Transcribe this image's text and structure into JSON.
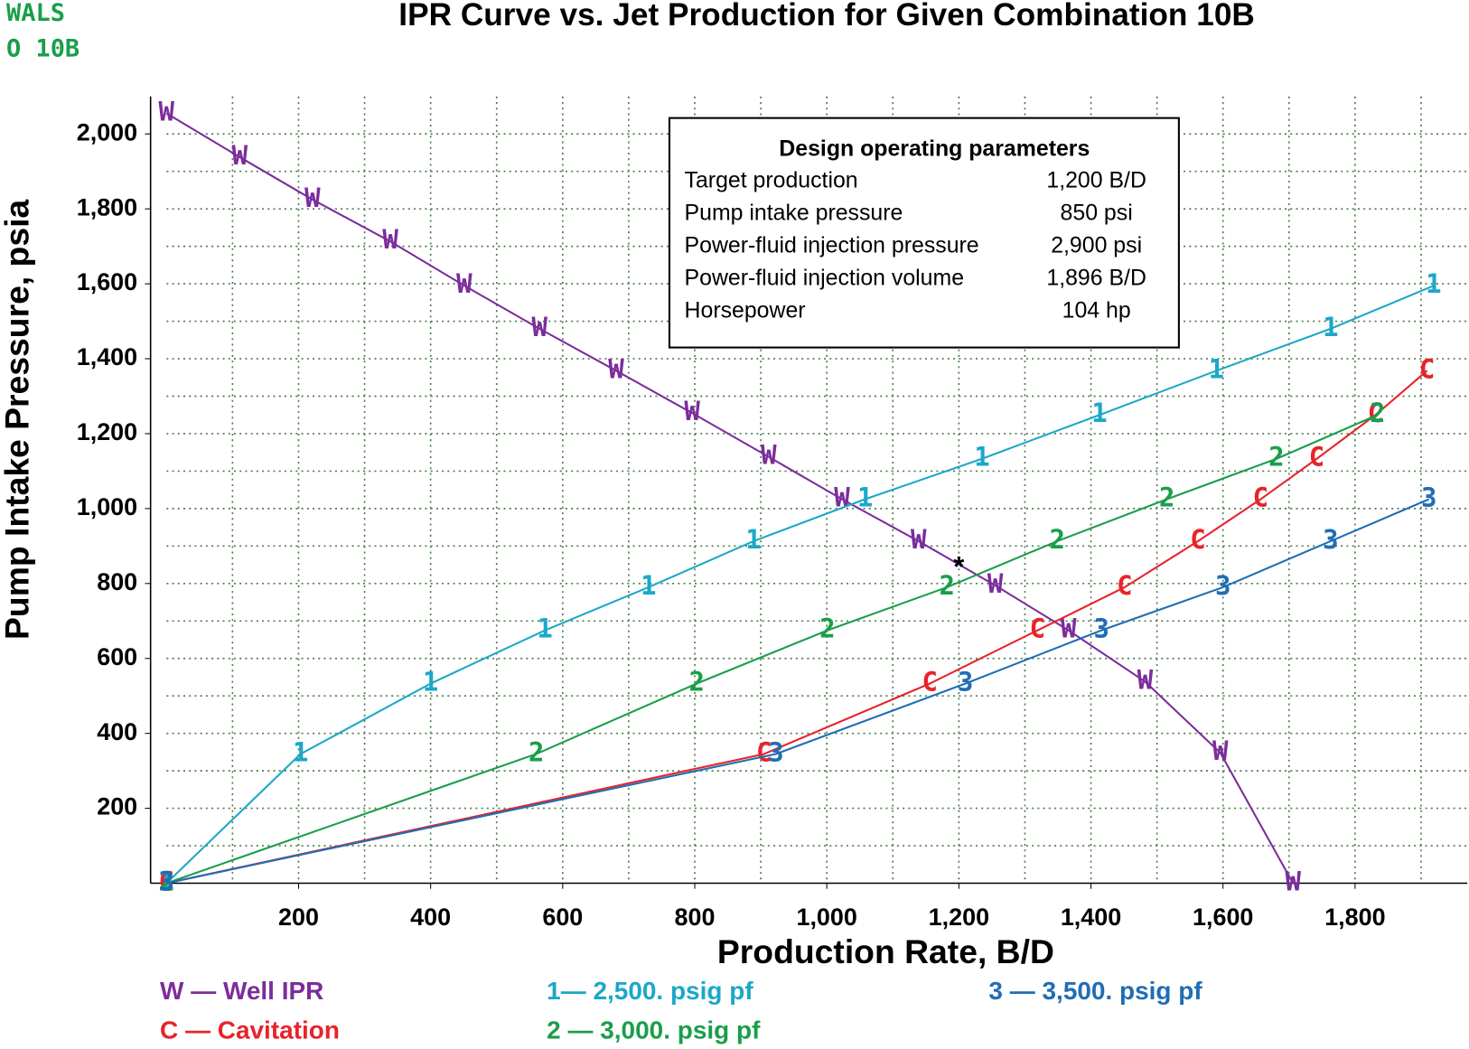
{
  "chart_data": {
    "type": "line",
    "title": "IPR Curve vs. Jet Production for Given Combination 10B",
    "corner_label": [
      "WALS",
      "O 10B"
    ],
    "x_label": "Production Rate, B/D",
    "y_label": "Pump Intake Pressure, psia",
    "xlim": [
      0,
      1970
    ],
    "ylim": [
      0,
      2100
    ],
    "xticks": [
      200,
      400,
      600,
      800,
      {
        "value": 1000,
        "label": "1,000"
      },
      {
        "value": 1200,
        "label": "1,200"
      },
      {
        "value": 1400,
        "label": "1,400"
      },
      {
        "value": 1600,
        "label": "1,600"
      },
      {
        "value": 1800,
        "label": "1,800"
      }
    ],
    "yticks": [
      200,
      400,
      600,
      800,
      {
        "value": 1000,
        "label": "1,000"
      },
      {
        "value": 1200,
        "label": "1,200"
      },
      {
        "value": 1400,
        "label": "1,400"
      },
      {
        "value": 1600,
        "label": "1,600"
      },
      {
        "value": 1800,
        "label": "1,800"
      },
      {
        "value": 2000,
        "label": "2,000"
      }
    ],
    "xgrid": [
      100,
      200,
      300,
      400,
      500,
      600,
      700,
      800,
      900,
      1000,
      1100,
      1200,
      1300,
      1400,
      1500,
      1600,
      1700,
      1800,
      1900
    ],
    "ygrid": [
      100,
      200,
      300,
      400,
      500,
      600,
      700,
      800,
      900,
      1000,
      1100,
      1200,
      1300,
      1400,
      1500,
      1600,
      1700,
      1800,
      1900,
      2000
    ],
    "grid": true,
    "series": [
      {
        "name": "W — Well IPR",
        "marker": "W",
        "color": "#7b2d9b",
        "x": [
          0,
          111,
          221,
          339,
          451,
          565,
          681,
          796,
          912,
          1023,
          1139,
          1255,
          1366,
          1482,
          1596,
          1706
        ],
        "values": [
          2055,
          1938,
          1825,
          1713,
          1595,
          1480,
          1368,
          1255,
          1138,
          1025,
          913,
          795,
          675,
          538,
          348,
          0
        ]
      },
      {
        "name": "C — Cavitation",
        "marker": "C",
        "color": "#e8232a",
        "x": [
          0,
          905,
          1156,
          1319,
          1451,
          1562,
          1657,
          1742,
          1831,
          1909
        ],
        "values": [
          0,
          345,
          533,
          675,
          790,
          913,
          1025,
          1133,
          1250,
          1368
        ]
      },
      {
        "name": "1— 2,500. psig pf",
        "marker": "1",
        "color": "#1ba8c8",
        "x": [
          0,
          203,
          400,
          573,
          730,
          889,
          1058,
          1235,
          1413,
          1590,
          1763,
          1919
        ],
        "values": [
          0,
          345,
          533,
          675,
          790,
          913,
          1025,
          1133,
          1250,
          1368,
          1480,
          1595
        ]
      },
      {
        "name": "2 — 3,000. psig pf",
        "marker": "2",
        "color": "#1a9e4a",
        "x": [
          0,
          560,
          803,
          1001,
          1182,
          1349,
          1515,
          1681,
          1834
        ],
        "values": [
          0,
          345,
          533,
          675,
          790,
          913,
          1025,
          1133,
          1250
        ]
      },
      {
        "name": "3 — 3,500. psig pf",
        "marker": "3",
        "color": "#1f6db5",
        "x": [
          0,
          923,
          1210,
          1416,
          1600,
          1763,
          1912
        ],
        "values": [
          0,
          345,
          533,
          675,
          790,
          913,
          1025
        ]
      }
    ],
    "target_point": {
      "x": 1200,
      "y": 850,
      "label": "*"
    },
    "parameters_box": {
      "title": "Design operating parameters",
      "rows": [
        [
          "Target production",
          "1,200 B/D"
        ],
        [
          "Pump intake pressure",
          "850 psi"
        ],
        [
          "Power-fluid injection pressure",
          "2,900 psi"
        ],
        [
          "Power-fluid injection volume",
          "1,896 B/D"
        ],
        [
          "Horsepower",
          "104 hp"
        ]
      ]
    }
  }
}
